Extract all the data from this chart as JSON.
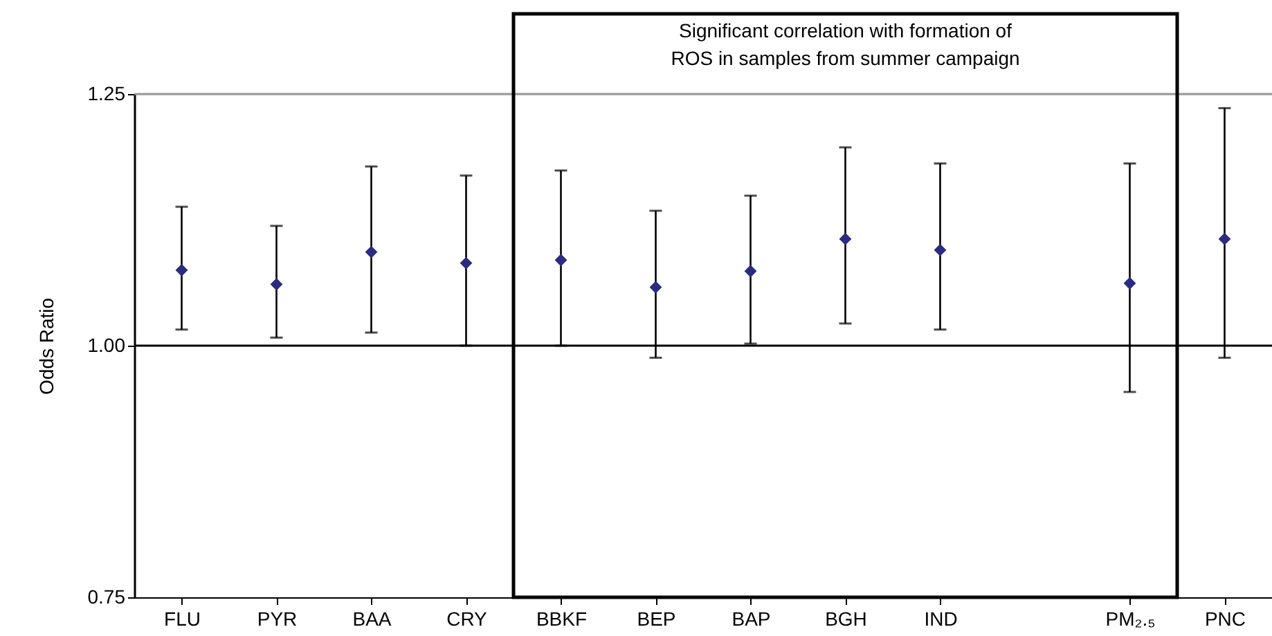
{
  "chart_data": {
    "type": "scatter",
    "ylabel": "Odds Ratio",
    "categories": [
      "FLU",
      "PYR",
      "BAA",
      "CRY",
      "BBKF",
      "BEP",
      "BAP",
      "BGH",
      "IND",
      null,
      "PM₂.₅",
      "PNC"
    ],
    "series": [
      {
        "color": "#2b2b80",
        "values": [
          1.075,
          1.061,
          1.093,
          1.082,
          1.085,
          1.058,
          1.074,
          1.106,
          1.095,
          null,
          1.062,
          1.106
        ],
        "errors": [
          [
            1.016,
            1.138
          ],
          [
            1.008,
            1.119
          ],
          [
            1.013,
            1.178
          ],
          [
            1.0,
            1.169
          ],
          [
            1.0,
            1.174
          ],
          [
            0.988,
            1.134
          ],
          [
            1.002,
            1.149
          ],
          [
            1.022,
            1.197
          ],
          [
            1.016,
            1.181
          ],
          null,
          [
            0.954,
            1.181
          ],
          [
            0.988,
            1.236
          ]
        ]
      }
    ],
    "marker": "diamond",
    "ylim": [
      0.75,
      1.25
    ],
    "yticks": [
      {
        "value": 0.75,
        "label": "0.75"
      },
      {
        "value": 1.0,
        "label": "1.00"
      },
      {
        "value": 1.25,
        "label": "1.25"
      }
    ],
    "ref_lines": [
      {
        "axis": "y",
        "value": 1.0,
        "color": "#000000"
      },
      {
        "axis": "y",
        "value": 1.25,
        "color": "#999999"
      }
    ],
    "annotations": [
      "Significant correlation with formation of\nROS in samples from summer campaign"
    ]
  }
}
